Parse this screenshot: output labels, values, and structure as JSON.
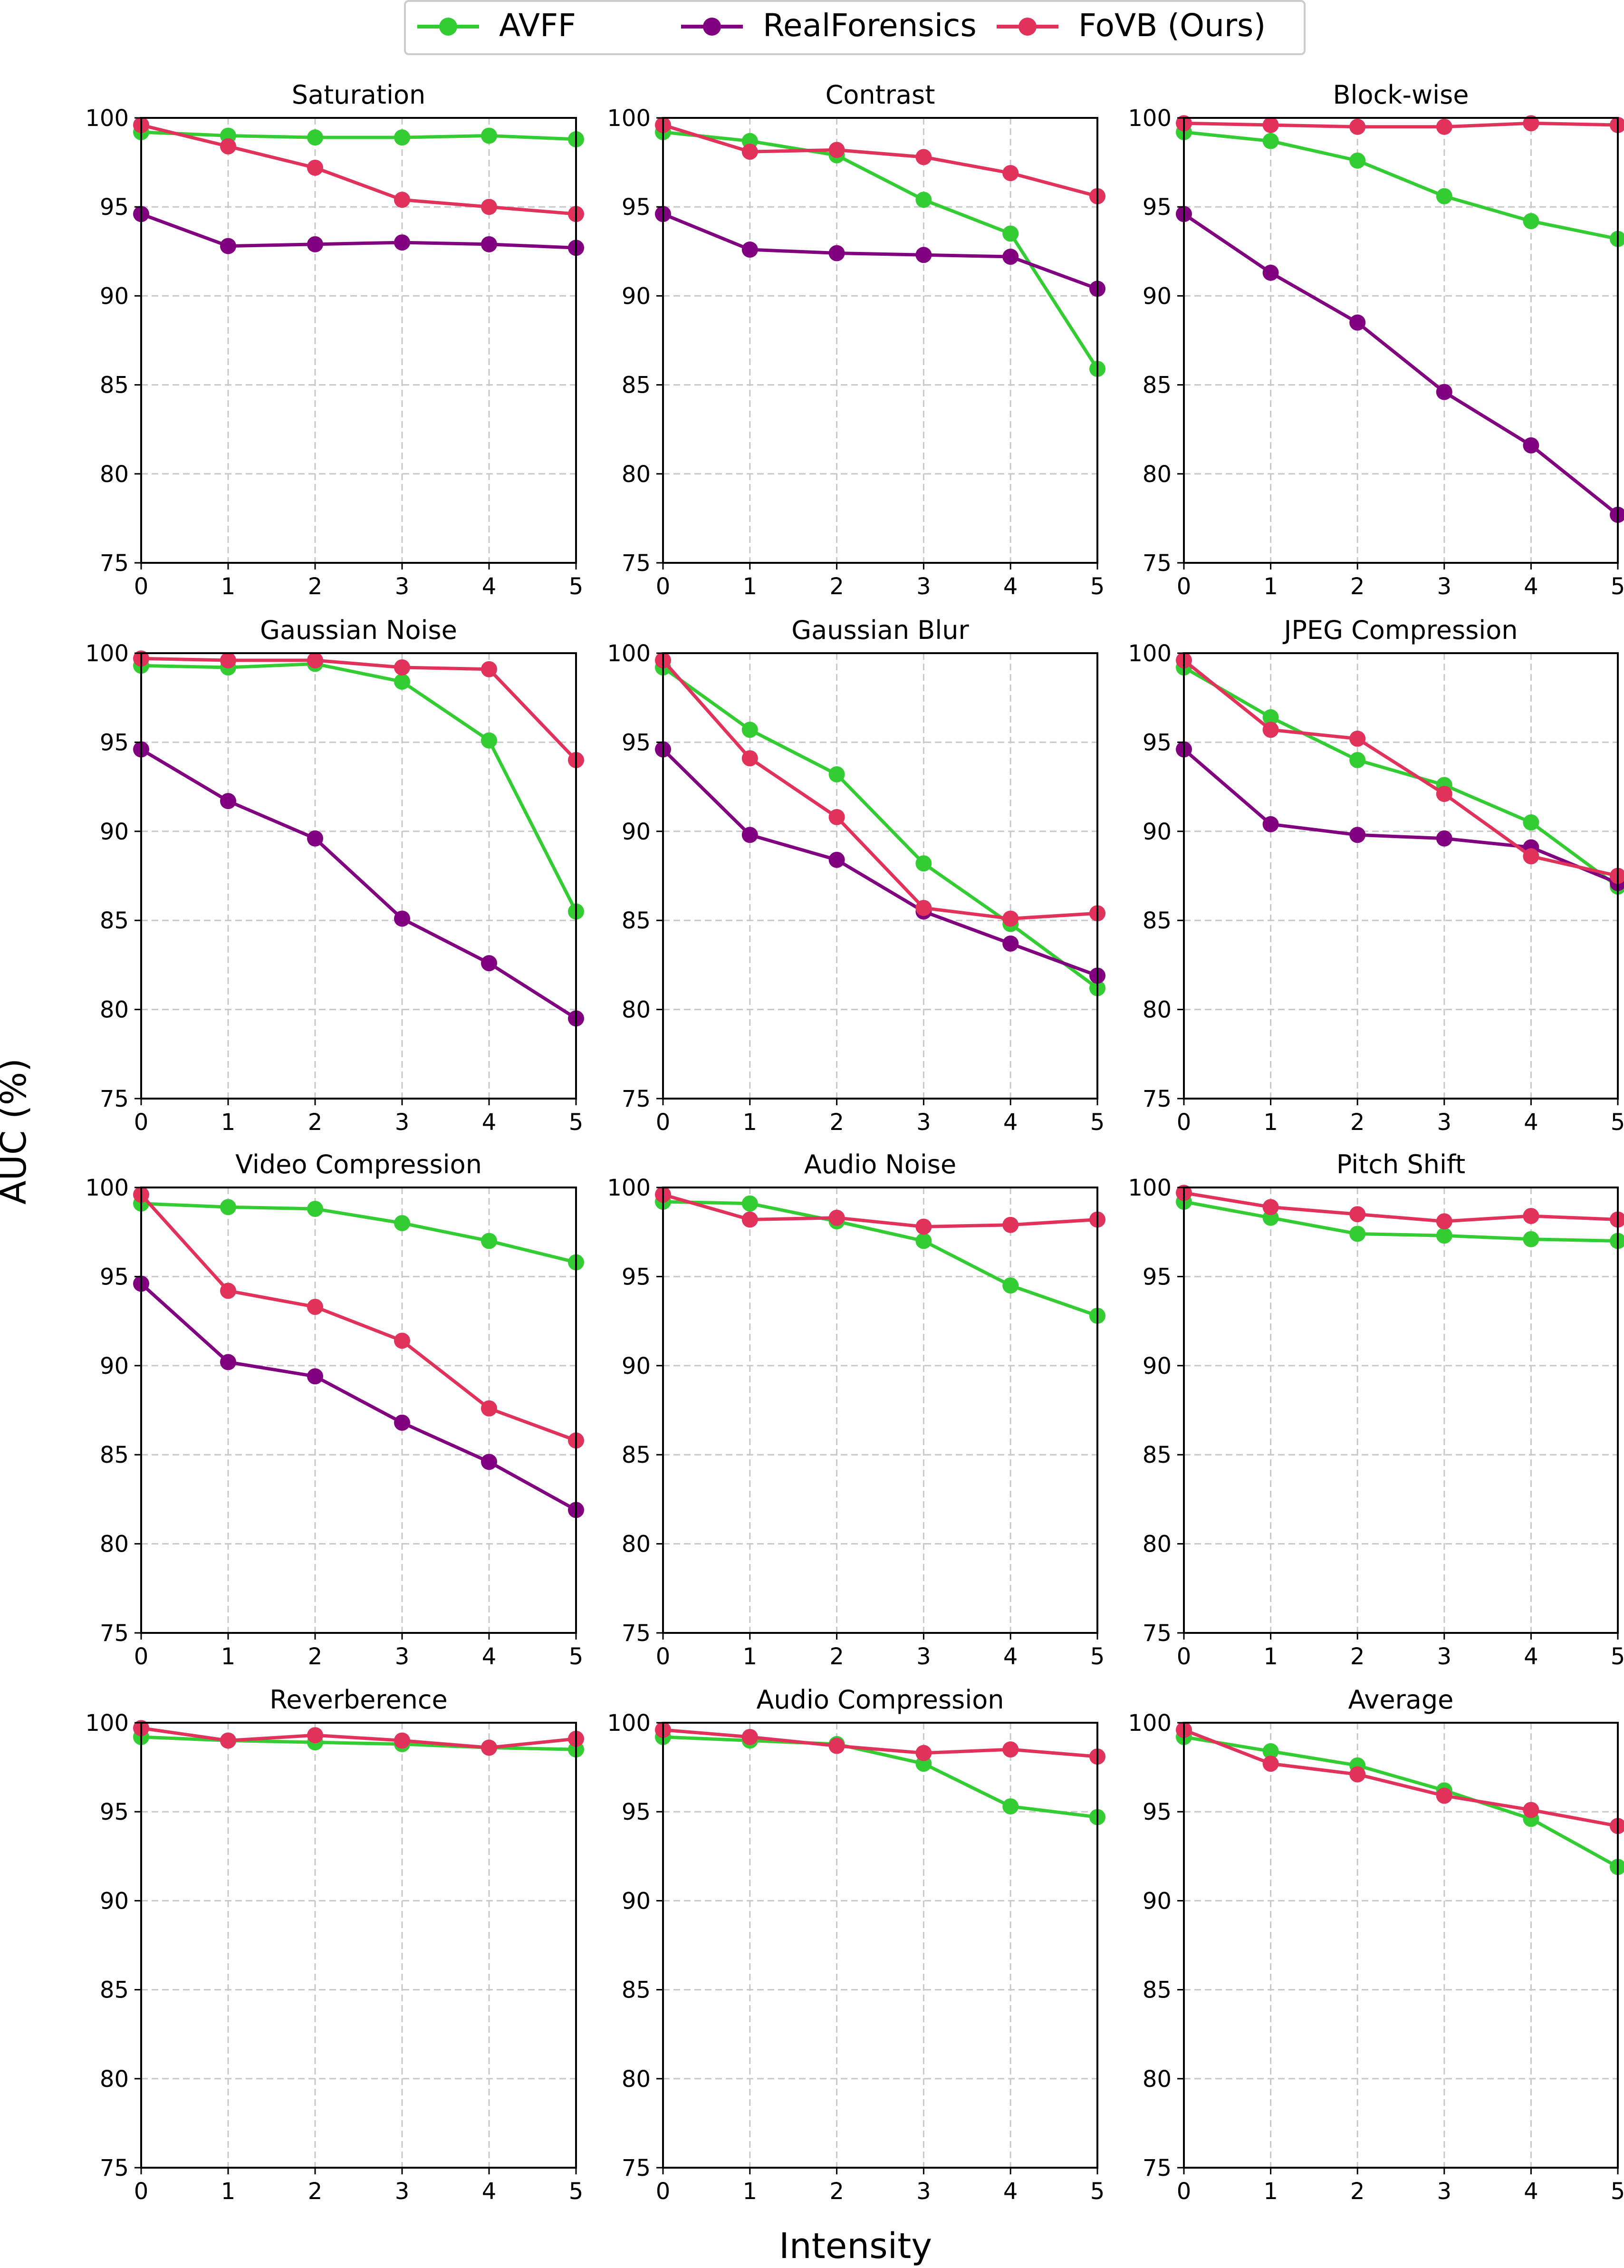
{
  "figure": {
    "ylabel": "AUC (%)",
    "xlabel": "Intensity"
  },
  "legend": {
    "items": [
      {
        "name": "AVFF",
        "color": "#33cc33"
      },
      {
        "name": "RealForensics",
        "color": "#800080"
      },
      {
        "name": "FoVB (Ours)",
        "color": "#e0325a"
      }
    ]
  },
  "chart_data": [
    {
      "type": "line",
      "title": "Saturation",
      "x": [
        0,
        1,
        2,
        3,
        4,
        5
      ],
      "xlim": [
        0,
        5
      ],
      "ylim": [
        75,
        100
      ],
      "yticks": [
        75,
        80,
        85,
        90,
        95,
        100
      ],
      "xticks": [
        0,
        1,
        2,
        3,
        4,
        5
      ],
      "grid": true,
      "series": [
        {
          "name": "AVFF",
          "values": [
            99.2,
            99.0,
            98.9,
            98.9,
            99.0,
            98.8
          ]
        },
        {
          "name": "RealForensics",
          "values": [
            94.6,
            92.8,
            92.9,
            93.0,
            92.9,
            92.7
          ]
        },
        {
          "name": "FoVB (Ours)",
          "values": [
            99.6,
            98.4,
            97.2,
            95.4,
            95.0,
            94.6
          ]
        }
      ]
    },
    {
      "type": "line",
      "title": "Contrast",
      "x": [
        0,
        1,
        2,
        3,
        4,
        5
      ],
      "xlim": [
        0,
        5
      ],
      "ylim": [
        75,
        100
      ],
      "yticks": [
        75,
        80,
        85,
        90,
        95,
        100
      ],
      "xticks": [
        0,
        1,
        2,
        3,
        4,
        5
      ],
      "grid": true,
      "series": [
        {
          "name": "AVFF",
          "values": [
            99.2,
            98.7,
            97.9,
            95.4,
            93.5,
            85.9
          ]
        },
        {
          "name": "RealForensics",
          "values": [
            94.6,
            92.6,
            92.4,
            92.3,
            92.2,
            90.4
          ]
        },
        {
          "name": "FoVB (Ours)",
          "values": [
            99.6,
            98.1,
            98.2,
            97.8,
            96.9,
            95.6
          ]
        }
      ]
    },
    {
      "type": "line",
      "title": "Block-wise",
      "x": [
        0,
        1,
        2,
        3,
        4,
        5
      ],
      "xlim": [
        0,
        5
      ],
      "ylim": [
        75,
        100
      ],
      "yticks": [
        75,
        80,
        85,
        90,
        95,
        100
      ],
      "xticks": [
        0,
        1,
        2,
        3,
        4,
        5
      ],
      "grid": true,
      "series": [
        {
          "name": "AVFF",
          "values": [
            99.2,
            98.7,
            97.6,
            95.6,
            94.2,
            93.2
          ]
        },
        {
          "name": "RealForensics",
          "values": [
            94.6,
            91.3,
            88.5,
            84.6,
            81.6,
            77.7
          ]
        },
        {
          "name": "FoVB (Ours)",
          "values": [
            99.7,
            99.6,
            99.5,
            99.5,
            99.7,
            99.6
          ]
        }
      ]
    },
    {
      "type": "line",
      "title": "Gaussian Noise",
      "x": [
        0,
        1,
        2,
        3,
        4,
        5
      ],
      "xlim": [
        0,
        5
      ],
      "ylim": [
        75,
        100
      ],
      "yticks": [
        75,
        80,
        85,
        90,
        95,
        100
      ],
      "xticks": [
        0,
        1,
        2,
        3,
        4,
        5
      ],
      "grid": true,
      "series": [
        {
          "name": "AVFF",
          "values": [
            99.3,
            99.2,
            99.4,
            98.4,
            95.1,
            85.5
          ]
        },
        {
          "name": "RealForensics",
          "values": [
            94.6,
            91.7,
            89.6,
            85.1,
            82.6,
            79.5
          ]
        },
        {
          "name": "FoVB (Ours)",
          "values": [
            99.7,
            99.6,
            99.6,
            99.2,
            99.1,
            94.0
          ]
        }
      ]
    },
    {
      "type": "line",
      "title": "Gaussian Blur",
      "x": [
        0,
        1,
        2,
        3,
        4,
        5
      ],
      "xlim": [
        0,
        5
      ],
      "ylim": [
        75,
        100
      ],
      "yticks": [
        75,
        80,
        85,
        90,
        95,
        100
      ],
      "xticks": [
        0,
        1,
        2,
        3,
        4,
        5
      ],
      "grid": true,
      "series": [
        {
          "name": "AVFF",
          "values": [
            99.2,
            95.7,
            93.2,
            88.2,
            84.8,
            81.2
          ]
        },
        {
          "name": "RealForensics",
          "values": [
            94.6,
            89.8,
            88.4,
            85.5,
            83.7,
            81.9
          ]
        },
        {
          "name": "FoVB (Ours)",
          "values": [
            99.6,
            94.1,
            90.8,
            85.7,
            85.1,
            85.4
          ]
        }
      ]
    },
    {
      "type": "line",
      "title": "JPEG Compression",
      "x": [
        0,
        1,
        2,
        3,
        4,
        5
      ],
      "xlim": [
        0,
        5
      ],
      "ylim": [
        75,
        100
      ],
      "yticks": [
        75,
        80,
        85,
        90,
        95,
        100
      ],
      "xticks": [
        0,
        1,
        2,
        3,
        4,
        5
      ],
      "grid": true,
      "series": [
        {
          "name": "AVFF",
          "values": [
            99.2,
            96.4,
            94.0,
            92.6,
            90.5,
            86.9
          ]
        },
        {
          "name": "RealForensics",
          "values": [
            94.6,
            90.4,
            89.8,
            89.6,
            89.1,
            87.1
          ]
        },
        {
          "name": "FoVB (Ours)",
          "values": [
            99.6,
            95.7,
            95.2,
            92.1,
            88.6,
            87.5
          ]
        }
      ]
    },
    {
      "type": "line",
      "title": "Video Compression",
      "x": [
        0,
        1,
        2,
        3,
        4,
        5
      ],
      "xlim": [
        0,
        5
      ],
      "ylim": [
        75,
        100
      ],
      "yticks": [
        75,
        80,
        85,
        90,
        95,
        100
      ],
      "xticks": [
        0,
        1,
        2,
        3,
        4,
        5
      ],
      "grid": true,
      "series": [
        {
          "name": "AVFF",
          "values": [
            99.1,
            98.9,
            98.8,
            98.0,
            97.0,
            95.8
          ]
        },
        {
          "name": "RealForensics",
          "values": [
            94.6,
            90.2,
            89.4,
            86.8,
            84.6,
            81.9
          ]
        },
        {
          "name": "FoVB (Ours)",
          "values": [
            99.6,
            94.2,
            93.3,
            91.4,
            87.6,
            85.8
          ]
        }
      ]
    },
    {
      "type": "line",
      "title": "Audio Noise",
      "x": [
        0,
        1,
        2,
        3,
        4,
        5
      ],
      "xlim": [
        0,
        5
      ],
      "ylim": [
        75,
        100
      ],
      "yticks": [
        75,
        80,
        85,
        90,
        95,
        100
      ],
      "xticks": [
        0,
        1,
        2,
        3,
        4,
        5
      ],
      "grid": true,
      "series": [
        {
          "name": "AVFF",
          "values": [
            99.2,
            99.1,
            98.1,
            97.0,
            94.5,
            92.8
          ]
        },
        {
          "name": "FoVB (Ours)",
          "values": [
            99.6,
            98.2,
            98.3,
            97.8,
            97.9,
            98.2
          ]
        }
      ]
    },
    {
      "type": "line",
      "title": "Pitch Shift",
      "x": [
        0,
        1,
        2,
        3,
        4,
        5
      ],
      "xlim": [
        0,
        5
      ],
      "ylim": [
        75,
        100
      ],
      "yticks": [
        75,
        80,
        85,
        90,
        95,
        100
      ],
      "xticks": [
        0,
        1,
        2,
        3,
        4,
        5
      ],
      "grid": true,
      "series": [
        {
          "name": "AVFF",
          "values": [
            99.2,
            98.3,
            97.4,
            97.3,
            97.1,
            97.0
          ]
        },
        {
          "name": "FoVB (Ours)",
          "values": [
            99.7,
            98.9,
            98.5,
            98.1,
            98.4,
            98.2
          ]
        }
      ]
    },
    {
      "type": "line",
      "title": "Reverberence",
      "x": [
        0,
        1,
        2,
        3,
        4,
        5
      ],
      "xlim": [
        0,
        5
      ],
      "ylim": [
        75,
        100
      ],
      "yticks": [
        75,
        80,
        85,
        90,
        95,
        100
      ],
      "xticks": [
        0,
        1,
        2,
        3,
        4,
        5
      ],
      "grid": true,
      "series": [
        {
          "name": "AVFF",
          "values": [
            99.2,
            99.0,
            98.9,
            98.8,
            98.6,
            98.5
          ]
        },
        {
          "name": "FoVB (Ours)",
          "values": [
            99.7,
            99.0,
            99.3,
            99.0,
            98.6,
            99.1
          ]
        }
      ]
    },
    {
      "type": "line",
      "title": "Audio Compression",
      "x": [
        0,
        1,
        2,
        3,
        4,
        5
      ],
      "xlim": [
        0,
        5
      ],
      "ylim": [
        75,
        100
      ],
      "yticks": [
        75,
        80,
        85,
        90,
        95,
        100
      ],
      "xticks": [
        0,
        1,
        2,
        3,
        4,
        5
      ],
      "grid": true,
      "series": [
        {
          "name": "AVFF",
          "values": [
            99.2,
            99.0,
            98.8,
            97.7,
            95.3,
            94.7
          ]
        },
        {
          "name": "FoVB (Ours)",
          "values": [
            99.6,
            99.2,
            98.7,
            98.3,
            98.5,
            98.1
          ]
        }
      ]
    },
    {
      "type": "line",
      "title": "Average",
      "x": [
        0,
        1,
        2,
        3,
        4,
        5
      ],
      "xlim": [
        0,
        5
      ],
      "ylim": [
        75,
        100
      ],
      "yticks": [
        75,
        80,
        85,
        90,
        95,
        100
      ],
      "xticks": [
        0,
        1,
        2,
        3,
        4,
        5
      ],
      "grid": true,
      "series": [
        {
          "name": "AVFF",
          "values": [
            99.2,
            98.4,
            97.6,
            96.2,
            94.6,
            91.9
          ]
        },
        {
          "name": "FoVB (Ours)",
          "values": [
            99.6,
            97.7,
            97.1,
            95.9,
            95.1,
            94.2
          ]
        }
      ]
    }
  ]
}
